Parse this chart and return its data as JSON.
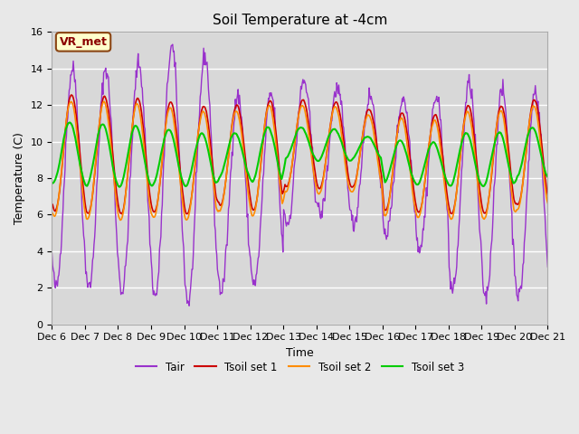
{
  "title": "Soil Temperature at -4cm",
  "xlabel": "Time",
  "ylabel": "Temperature (C)",
  "ylim": [
    0,
    16
  ],
  "fig_bg_color": "#e8e8e8",
  "plot_bg_color": "#d8d8d8",
  "grid_color": "#ffffff",
  "annotation_text": "VR_met",
  "annotation_bg": "#ffffcc",
  "annotation_border": "#8b4513",
  "annotation_text_color": "#8b0000",
  "series": {
    "Tair": {
      "color": "#9932cc",
      "lw": 1.0
    },
    "Tsoil set 1": {
      "color": "#cc0000",
      "lw": 1.2
    },
    "Tsoil set 2": {
      "color": "#ff8c00",
      "lw": 1.2
    },
    "Tsoil set 3": {
      "color": "#00cc00",
      "lw": 1.5
    }
  },
  "x_tick_labels": [
    "Dec 6",
    "Dec 7",
    "Dec 8",
    "Dec 9",
    "Dec 10",
    "Dec 11",
    "Dec 12",
    "Dec 13",
    "Dec 14",
    "Dec 15",
    "Dec 16",
    "Dec 17",
    "Dec 18",
    "Dec 19",
    "Dec 20",
    "Dec 21"
  ],
  "n_days": 15,
  "n_points_per_day": 48,
  "tair_day_peaks": [
    14.0,
    14.0,
    14.3,
    15.2,
    14.7,
    12.5,
    12.6,
    13.3,
    12.9,
    12.5,
    12.4,
    12.4,
    13.2,
    12.8,
    12.8
  ],
  "tair_day_troughs": [
    2.0,
    2.0,
    1.8,
    1.5,
    1.2,
    1.8,
    2.2,
    5.5,
    6.0,
    5.5,
    5.0,
    4.2,
    1.8,
    1.5,
    1.5
  ],
  "tsoil_peaks": [
    12.6,
    12.5,
    12.4,
    12.2,
    12.0,
    12.0,
    12.3,
    12.3,
    12.2,
    11.8,
    11.6,
    11.5,
    12.0,
    12.0,
    12.3
  ],
  "tsoil_troughs": [
    6.2,
    6.0,
    6.0,
    6.1,
    6.0,
    6.5,
    6.2,
    7.5,
    7.4,
    7.5,
    6.2,
    6.1,
    6.0,
    6.0,
    6.5
  ],
  "tsoil3_peak_add": 0.0,
  "tsoil3_trough_add": 1.5
}
